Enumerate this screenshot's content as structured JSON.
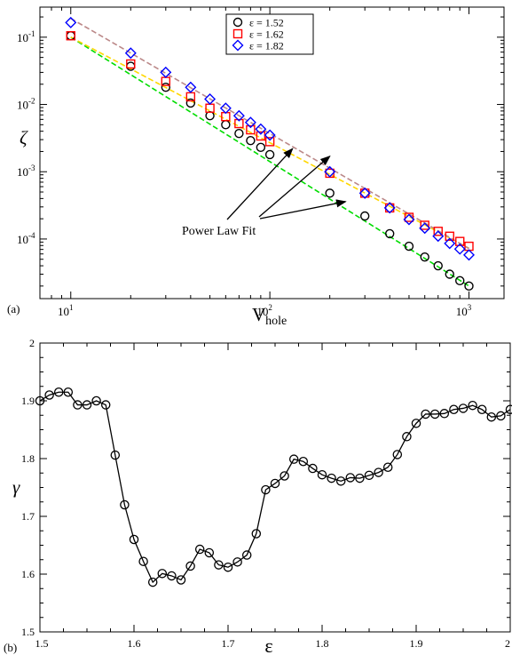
{
  "chart_data": [
    {
      "panel_label": "(a)",
      "type": "scatter",
      "xscale": "log",
      "yscale": "log",
      "xlim": [
        7,
        1500
      ],
      "ylim": [
        1.3e-05,
        0.28
      ],
      "xlabel_main": "V",
      "xlabel_sub": "hole",
      "ylabel": "ζ",
      "x_ticks": [
        {
          "v": 10,
          "m": "1"
        },
        {
          "v": 100,
          "m": "2"
        },
        {
          "v": 1000,
          "m": "3"
        }
      ],
      "y_ticks": [
        {
          "v": 0.0001,
          "m": "-4"
        },
        {
          "v": 0.001,
          "m": "-3"
        },
        {
          "v": 0.01,
          "m": "-2"
        },
        {
          "v": 0.1,
          "m": "-1"
        }
      ],
      "tick_base": "10",
      "legend_position": "top-center",
      "series": [
        {
          "name": "ε = 1.52",
          "marker": "circle",
          "color": "#000000",
          "x": [
            10,
            20,
            30,
            40,
            50,
            60,
            70,
            80,
            90,
            100,
            200,
            300,
            400,
            500,
            600,
            700,
            800,
            900,
            1000
          ],
          "y": [
            0.105,
            0.037,
            0.018,
            0.0105,
            0.0068,
            0.005,
            0.0037,
            0.0029,
            0.0023,
            0.0018,
            0.00048,
            0.00022,
            0.00012,
            7.8e-05,
            5.4e-05,
            4e-05,
            3e-05,
            2.4e-05,
            2e-05
          ]
        },
        {
          "name": "ε = 1.62",
          "marker": "square",
          "color": "#ff0000",
          "x": [
            10,
            20,
            30,
            40,
            50,
            60,
            70,
            80,
            90,
            100,
            200,
            300,
            400,
            500,
            600,
            700,
            800,
            900,
            1000
          ],
          "y": [
            0.105,
            0.04,
            0.022,
            0.013,
            0.0088,
            0.0066,
            0.0052,
            0.0042,
            0.0034,
            0.0028,
            0.00095,
            0.00048,
            0.00029,
            0.00021,
            0.00016,
            0.00013,
            0.00011,
            9.2e-05,
            7.8e-05
          ]
        },
        {
          "name": "ε = 1.82",
          "marker": "diamond",
          "color": "#0000ff",
          "x": [
            10,
            20,
            30,
            40,
            50,
            60,
            70,
            80,
            90,
            100,
            200,
            300,
            400,
            500,
            600,
            700,
            800,
            900,
            1000
          ],
          "y": [
            0.165,
            0.058,
            0.03,
            0.018,
            0.012,
            0.0088,
            0.0068,
            0.0054,
            0.0043,
            0.0035,
            0.001,
            0.00048,
            0.00029,
            0.000195,
            0.000145,
            0.00011,
            8.6e-05,
            7.1e-05,
            5.8e-05
          ]
        }
      ],
      "fit_lines": [
        {
          "color": "#00dd00",
          "x": [
            10,
            1000
          ],
          "y": [
            0.1,
            2e-05
          ]
        },
        {
          "color": "#ffd700",
          "x": [
            10,
            1000
          ],
          "y": [
            0.1,
            7.3e-05
          ]
        },
        {
          "color": "#bb8888",
          "x": [
            10,
            1000
          ],
          "y": [
            0.19,
            7.2e-05
          ]
        }
      ],
      "annotation": {
        "text": "Power Law Fit",
        "arrow_targets": [
          {
            "x": 130,
            "y": 0.0022
          },
          {
            "x": 200,
            "y": 0.0017
          },
          {
            "x": 240,
            "y": 0.00036
          }
        ]
      }
    },
    {
      "panel_label": "(b)",
      "type": "line",
      "xlim": [
        1.5,
        2.0
      ],
      "ylim": [
        1.5,
        2.0
      ],
      "xlabel": "ε",
      "ylabel": "γ",
      "x_ticks": [
        "1.5",
        "1.6",
        "1.7",
        "1.8",
        "1.9",
        "2"
      ],
      "y_ticks": [
        "1.5",
        "1.6",
        "1.7",
        "1.8",
        "1.9",
        "2"
      ],
      "color": "#000000",
      "marker": "circle",
      "x": [
        1.5,
        1.51,
        1.52,
        1.53,
        1.54,
        1.55,
        1.56,
        1.57,
        1.58,
        1.59,
        1.6,
        1.61,
        1.62,
        1.63,
        1.64,
        1.65,
        1.66,
        1.67,
        1.68,
        1.69,
        1.7,
        1.71,
        1.72,
        1.73,
        1.74,
        1.75,
        1.76,
        1.77,
        1.78,
        1.79,
        1.8,
        1.81,
        1.82,
        1.83,
        1.84,
        1.85,
        1.86,
        1.87,
        1.88,
        1.89,
        1.9,
        1.91,
        1.92,
        1.93,
        1.94,
        1.95,
        1.96,
        1.97,
        1.98,
        1.99,
        2.0
      ],
      "y": [
        1.9,
        1.91,
        1.915,
        1.915,
        1.893,
        1.893,
        1.9,
        1.893,
        1.806,
        1.72,
        1.66,
        1.622,
        1.586,
        1.601,
        1.597,
        1.59,
        1.614,
        1.643,
        1.637,
        1.616,
        1.612,
        1.621,
        1.633,
        1.67,
        1.746,
        1.757,
        1.77,
        1.799,
        1.795,
        1.783,
        1.772,
        1.766,
        1.761,
        1.767,
        1.766,
        1.771,
        1.776,
        1.785,
        1.807,
        1.838,
        1.861,
        1.877,
        1.877,
        1.878,
        1.885,
        1.887,
        1.892,
        1.885,
        1.872,
        1.874,
        1.885
      ]
    }
  ]
}
